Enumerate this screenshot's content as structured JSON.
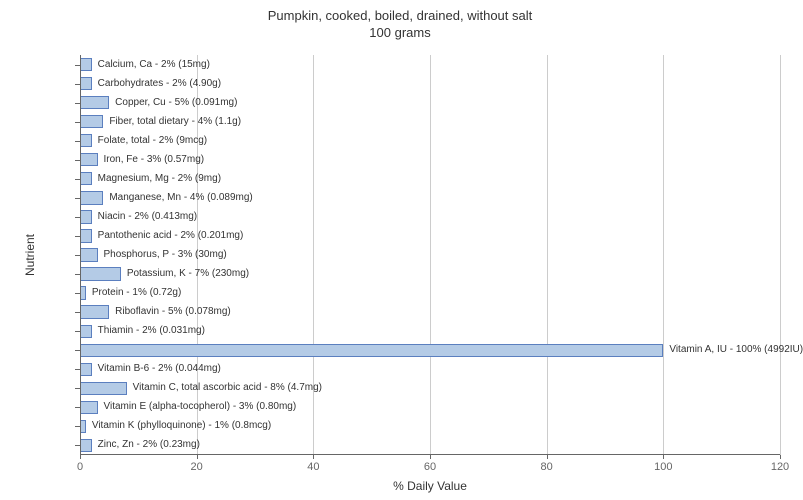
{
  "chart": {
    "type": "bar-horizontal",
    "title_line1": "Pumpkin, cooked, boiled, drained, without salt",
    "title_line2": "100 grams",
    "title_fontsize": 13,
    "title_color": "#333333",
    "background_color": "#ffffff",
    "plot_background": "#ffffff",
    "xlabel": "% Daily Value",
    "ylabel": "Nutrient",
    "label_fontsize": 12,
    "label_color": "#333333",
    "tick_fontsize": 11,
    "tick_color": "#666666",
    "bar_label_fontsize": 10,
    "xlim": [
      0,
      120
    ],
    "x_ticks": [
      0,
      20,
      40,
      60,
      80,
      100,
      120
    ],
    "grid_color": "#cccccc",
    "axis_color": "#666666",
    "bar_fill": "#b4cbe6",
    "bar_border": "#5b7fbf",
    "bar_height_ratio": 0.7,
    "items": [
      {
        "label": "Calcium, Ca - 2% (15mg)",
        "value": 2
      },
      {
        "label": "Carbohydrates - 2% (4.90g)",
        "value": 2
      },
      {
        "label": "Copper, Cu - 5% (0.091mg)",
        "value": 5
      },
      {
        "label": "Fiber, total dietary - 4% (1.1g)",
        "value": 4
      },
      {
        "label": "Folate, total - 2% (9mcg)",
        "value": 2
      },
      {
        "label": "Iron, Fe - 3% (0.57mg)",
        "value": 3
      },
      {
        "label": "Magnesium, Mg - 2% (9mg)",
        "value": 2
      },
      {
        "label": "Manganese, Mn - 4% (0.089mg)",
        "value": 4
      },
      {
        "label": "Niacin - 2% (0.413mg)",
        "value": 2
      },
      {
        "label": "Pantothenic acid - 2% (0.201mg)",
        "value": 2
      },
      {
        "label": "Phosphorus, P - 3% (30mg)",
        "value": 3
      },
      {
        "label": "Potassium, K - 7% (230mg)",
        "value": 7
      },
      {
        "label": "Protein - 1% (0.72g)",
        "value": 1
      },
      {
        "label": "Riboflavin - 5% (0.078mg)",
        "value": 5
      },
      {
        "label": "Thiamin - 2% (0.031mg)",
        "value": 2
      },
      {
        "label": "Vitamin A, IU - 100% (4992IU)",
        "value": 100
      },
      {
        "label": "Vitamin B-6 - 2% (0.044mg)",
        "value": 2
      },
      {
        "label": "Vitamin C, total ascorbic acid - 8% (4.7mg)",
        "value": 8
      },
      {
        "label": "Vitamin E (alpha-tocopherol) - 3% (0.80mg)",
        "value": 3
      },
      {
        "label": "Vitamin K (phylloquinone) - 1% (0.8mcg)",
        "value": 1
      },
      {
        "label": "Zinc, Zn - 2% (0.23mg)",
        "value": 2
      }
    ]
  }
}
